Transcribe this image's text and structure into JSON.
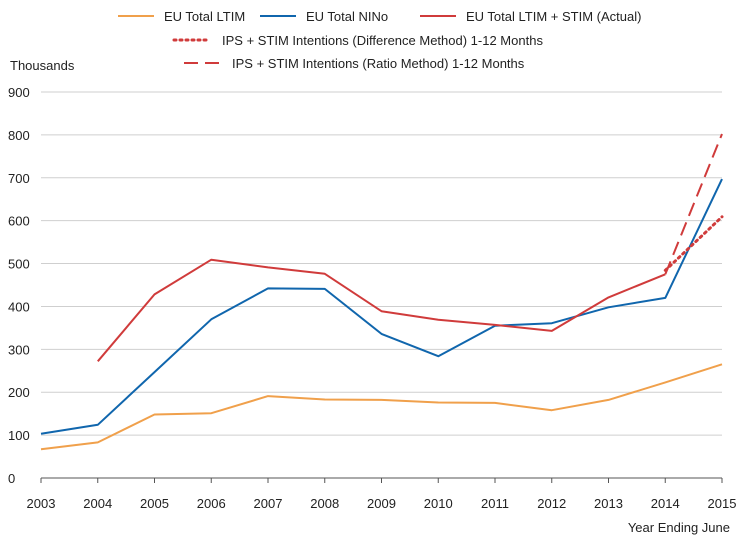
{
  "chart_data": {
    "type": "line",
    "ylabel": "Thousands",
    "xlabel": "Year Ending June",
    "ylim": [
      0,
      900
    ],
    "yticks": [
      0,
      100,
      200,
      300,
      400,
      500,
      600,
      700,
      800,
      900
    ],
    "x": [
      2003,
      2004,
      2005,
      2006,
      2007,
      2008,
      2009,
      2010,
      2011,
      2012,
      2013,
      2014,
      2015
    ],
    "grid": "horizontal",
    "legend_position": "top",
    "series": [
      {
        "name": "EU Total LTIM",
        "color": "#f0a04b",
        "style": "solid",
        "points": [
          [
            2003,
            67
          ],
          [
            2004,
            83
          ],
          [
            2005,
            148
          ],
          [
            2006,
            151
          ],
          [
            2007,
            191
          ],
          [
            2008,
            183
          ],
          [
            2009,
            182
          ],
          [
            2010,
            176
          ],
          [
            2011,
            175
          ],
          [
            2012,
            158
          ],
          [
            2013,
            182
          ],
          [
            2014,
            223
          ],
          [
            2015,
            265
          ]
        ]
      },
      {
        "name": "EU Total NINo",
        "color": "#1066ad",
        "style": "solid",
        "points": [
          [
            2003,
            103
          ],
          [
            2004,
            124
          ],
          [
            2005,
            247
          ],
          [
            2006,
            370
          ],
          [
            2007,
            442
          ],
          [
            2008,
            441
          ],
          [
            2009,
            336
          ],
          [
            2010,
            284
          ],
          [
            2011,
            355
          ],
          [
            2012,
            361
          ],
          [
            2013,
            398
          ],
          [
            2014,
            420
          ],
          [
            2015,
            697
          ]
        ]
      },
      {
        "name": "EU Total LTIM + STIM (Actual)",
        "color": "#d03b3b",
        "style": "solid",
        "points": [
          [
            2004,
            272
          ],
          [
            2005,
            428
          ],
          [
            2006,
            509
          ],
          [
            2007,
            491
          ],
          [
            2008,
            476
          ],
          [
            2009,
            389
          ],
          [
            2010,
            369
          ],
          [
            2011,
            357
          ],
          [
            2012,
            343
          ],
          [
            2013,
            421
          ],
          [
            2014,
            475
          ]
        ]
      },
      {
        "name": "IPS + STIM Intentions (Difference Method) 1-12 Months",
        "color": "#d03b3b",
        "style": "dotted",
        "points": [
          [
            2014,
            484
          ],
          [
            2015,
            609
          ]
        ]
      },
      {
        "name": "IPS + STIM Intentions (Ratio Method) 1-12 Months",
        "color": "#d03b3b",
        "style": "dashed",
        "points": [
          [
            2014,
            475
          ],
          [
            2015,
            802
          ]
        ]
      }
    ]
  }
}
